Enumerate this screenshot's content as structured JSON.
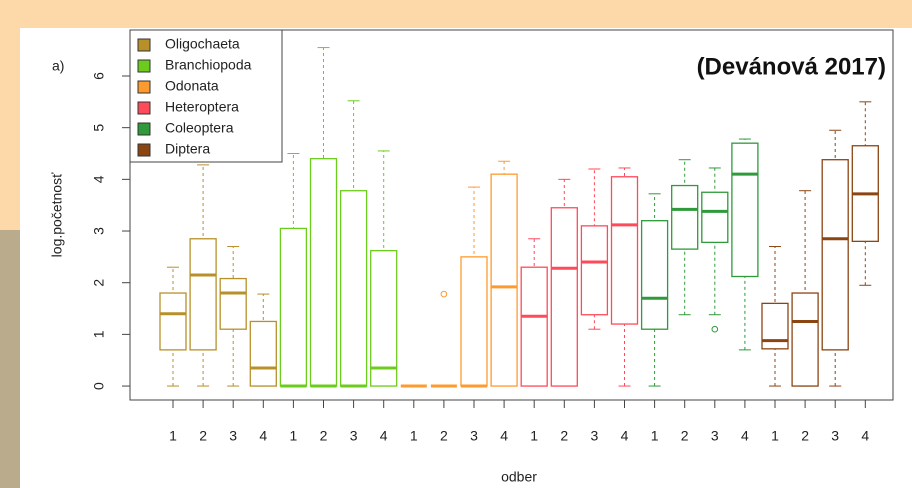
{
  "chart_data": {
    "type": "box",
    "panel_label": "a)",
    "annotation": "(Devánová 2017)",
    "y_label": "log.početnosť",
    "x_label": "odber",
    "categories": [
      "1",
      "2",
      "3",
      "4",
      "1",
      "2",
      "3",
      "4",
      "1",
      "2",
      "3",
      "4",
      "1",
      "2",
      "3",
      "4",
      "1",
      "2",
      "3",
      "4",
      "1",
      "2",
      "3",
      "4"
    ],
    "ylim": [
      -0.27,
      6.89
    ],
    "yticks": [
      0,
      1,
      2,
      3,
      4,
      5,
      6
    ],
    "series": [
      {
        "name": "Oligochaeta",
        "color": "#b8902a",
        "boxes": [
          {
            "min": 0,
            "q1": 0.7,
            "median": 1.4,
            "q3": 1.8,
            "max": 2.3,
            "outliers": []
          },
          {
            "min": 0,
            "q1": 0.7,
            "median": 2.15,
            "q3": 2.85,
            "max": 4.28,
            "outliers": []
          },
          {
            "min": 0,
            "q1": 1.1,
            "median": 1.8,
            "q3": 2.08,
            "max": 2.7,
            "outliers": []
          },
          {
            "min": 0,
            "q1": 0,
            "median": 0.35,
            "q3": 1.25,
            "max": 1.78,
            "outliers": []
          }
        ]
      },
      {
        "name": "Branchiopoda",
        "color": "#6ccc1c",
        "boxes": [
          {
            "min": 0,
            "q1": 0,
            "median": 0,
            "q3": 3.05,
            "max": 4.5,
            "outliers": []
          },
          {
            "min": 0,
            "q1": 0,
            "median": 0,
            "q3": 4.4,
            "max": 6.55,
            "outliers": []
          },
          {
            "min": 0,
            "q1": 0,
            "median": 0,
            "q3": 3.78,
            "max": 5.52,
            "outliers": []
          },
          {
            "min": 0,
            "q1": 0,
            "median": 0.35,
            "q3": 2.62,
            "max": 4.55,
            "outliers": []
          }
        ]
      },
      {
        "name": "Odonata",
        "color": "#ff9a2e",
        "boxes": [
          {
            "min": 0,
            "q1": 0,
            "median": 0,
            "q3": 0,
            "max": 0,
            "outliers": []
          },
          {
            "min": 0,
            "q1": 0,
            "median": 0,
            "q3": 0,
            "max": 0,
            "outliers": [
              1.78
            ]
          },
          {
            "min": 0,
            "q1": 0,
            "median": 0,
            "q3": 2.5,
            "max": 3.85,
            "outliers": []
          },
          {
            "min": 0,
            "q1": 0,
            "median": 1.92,
            "q3": 4.1,
            "max": 4.35,
            "outliers": []
          }
        ]
      },
      {
        "name": "Heteroptera",
        "color": "#ff4a5a",
        "boxes": [
          {
            "min": 0,
            "q1": 0,
            "median": 1.35,
            "q3": 2.3,
            "max": 2.85,
            "outliers": []
          },
          {
            "min": 0,
            "q1": 0,
            "median": 2.28,
            "q3": 3.45,
            "max": 4.0,
            "outliers": []
          },
          {
            "min": 1.1,
            "q1": 1.38,
            "median": 2.4,
            "q3": 3.1,
            "max": 4.2,
            "outliers": []
          },
          {
            "min": 0,
            "q1": 1.2,
            "median": 3.12,
            "q3": 4.05,
            "max": 4.22,
            "outliers": []
          }
        ]
      },
      {
        "name": "Coleoptera",
        "color": "#2e9a3a",
        "boxes": [
          {
            "min": 0,
            "q1": 1.1,
            "median": 1.7,
            "q3": 3.2,
            "max": 3.72,
            "outliers": []
          },
          {
            "min": 1.38,
            "q1": 2.65,
            "median": 3.42,
            "q3": 3.88,
            "max": 4.38,
            "outliers": []
          },
          {
            "min": 1.38,
            "q1": 2.78,
            "median": 3.38,
            "q3": 3.75,
            "max": 4.22,
            "outliers": [
              1.1
            ]
          },
          {
            "min": 0.7,
            "q1": 2.12,
            "median": 4.1,
            "q3": 4.7,
            "max": 4.78,
            "outliers": []
          }
        ]
      },
      {
        "name": "Diptera",
        "color": "#8b4513",
        "boxes": [
          {
            "min": 0,
            "q1": 0.72,
            "median": 0.88,
            "q3": 1.6,
            "max": 2.7,
            "outliers": []
          },
          {
            "min": 0,
            "q1": 0,
            "median": 1.25,
            "q3": 1.8,
            "max": 3.78,
            "outliers": []
          },
          {
            "min": 0,
            "q1": 0.7,
            "median": 2.85,
            "q3": 4.38,
            "max": 4.95,
            "outliers": []
          },
          {
            "min": 1.95,
            "q1": 2.8,
            "median": 3.72,
            "q3": 4.65,
            "max": 5.5,
            "outliers": []
          }
        ]
      }
    ]
  }
}
